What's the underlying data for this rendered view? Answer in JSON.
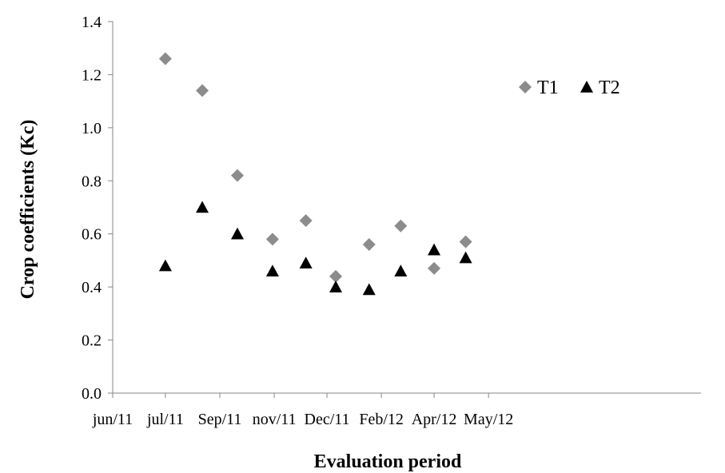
{
  "chart_data": {
    "type": "scatter",
    "title": "",
    "xlabel": "Evaluation period",
    "ylabel": "Crop coefficients (Kc)",
    "ylim": [
      0.0,
      1.4
    ],
    "yticks": [
      "0.0",
      "0.2",
      "0.4",
      "0.6",
      "0.8",
      "1.0",
      "1.2",
      "1.4"
    ],
    "xlim": [
      "2011-06-01",
      "2012-05-01"
    ],
    "xticks": [
      {
        "date": "2011-06-01",
        "label": "jun/11"
      },
      {
        "date": "2011-07-01",
        "label": "jul/11"
      },
      {
        "date": "2011-08-01",
        "label": "Sep/11"
      },
      {
        "date": "2011-09-01",
        "label": "nov/11"
      },
      {
        "date": "2011-10-01",
        "label": "Dec/11"
      },
      {
        "date": "2011-11-01",
        "label": "Feb/12"
      },
      {
        "date": "2011-12-01",
        "label": "Apr/12"
      },
      {
        "date": "2012-01-01",
        "label": "May/12"
      }
    ],
    "grid": false,
    "legend": "top-right",
    "series": [
      {
        "name": "T1",
        "marker": "diamond",
        "color": "#8c8c8c",
        "points": [
          {
            "x": "2011-07-01",
            "y": 1.26
          },
          {
            "x": "2011-07-22",
            "y": 1.14
          },
          {
            "x": "2011-08-11",
            "y": 0.82
          },
          {
            "x": "2011-08-31",
            "y": 0.58
          },
          {
            "x": "2011-09-19",
            "y": 0.65
          },
          {
            "x": "2011-10-06",
            "y": 0.44
          },
          {
            "x": "2011-10-25",
            "y": 0.56
          },
          {
            "x": "2011-11-12",
            "y": 0.63
          },
          {
            "x": "2011-12-01",
            "y": 0.47
          },
          {
            "x": "2011-12-19",
            "y": 0.57
          }
        ]
      },
      {
        "name": "T2",
        "marker": "triangle",
        "color": "#000000",
        "points": [
          {
            "x": "2011-07-01",
            "y": 0.48
          },
          {
            "x": "2011-07-22",
            "y": 0.7
          },
          {
            "x": "2011-08-11",
            "y": 0.6
          },
          {
            "x": "2011-08-31",
            "y": 0.46
          },
          {
            "x": "2011-09-19",
            "y": 0.49
          },
          {
            "x": "2011-10-06",
            "y": 0.4
          },
          {
            "x": "2011-10-25",
            "y": 0.39
          },
          {
            "x": "2011-11-12",
            "y": 0.46
          },
          {
            "x": "2011-12-01",
            "y": 0.54
          },
          {
            "x": "2011-12-19",
            "y": 0.51
          }
        ]
      }
    ]
  }
}
